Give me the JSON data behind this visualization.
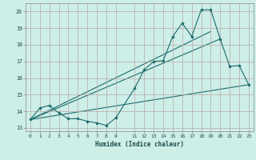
{
  "xlabel": "Humidex (Indice chaleur)",
  "bg_color": "#ceeee8",
  "grid_color": "#b8a8a8",
  "line_color": "#1a6b6b",
  "xlim": [
    -0.5,
    23.5
  ],
  "ylim": [
    12.8,
    20.5
  ],
  "yticks": [
    13,
    14,
    15,
    16,
    17,
    18,
    19,
    20
  ],
  "xticks": [
    0,
    1,
    2,
    3,
    4,
    5,
    6,
    7,
    8,
    9,
    11,
    12,
    13,
    14,
    15,
    16,
    17,
    18,
    19,
    20,
    21,
    22,
    23
  ],
  "series_zigzag": {
    "x": [
      0,
      1,
      2,
      3,
      4,
      5,
      6,
      7,
      8,
      9,
      11,
      12,
      13,
      14,
      15,
      16,
      17,
      18,
      19,
      20,
      21,
      22,
      23
    ],
    "y": [
      13.5,
      14.2,
      14.35,
      13.9,
      13.55,
      13.55,
      13.4,
      13.3,
      13.15,
      13.6,
      15.4,
      16.5,
      17.0,
      17.05,
      18.5,
      19.3,
      18.5,
      20.1,
      20.1,
      18.35,
      16.7,
      16.75,
      15.6
    ]
  },
  "line_top": {
    "x": [
      0,
      19
    ],
    "y": [
      13.5,
      18.8
    ]
  },
  "line_mid": {
    "x": [
      0,
      20
    ],
    "y": [
      13.5,
      18.35
    ]
  },
  "line_bot": {
    "x": [
      0,
      23
    ],
    "y": [
      13.5,
      15.6
    ]
  }
}
